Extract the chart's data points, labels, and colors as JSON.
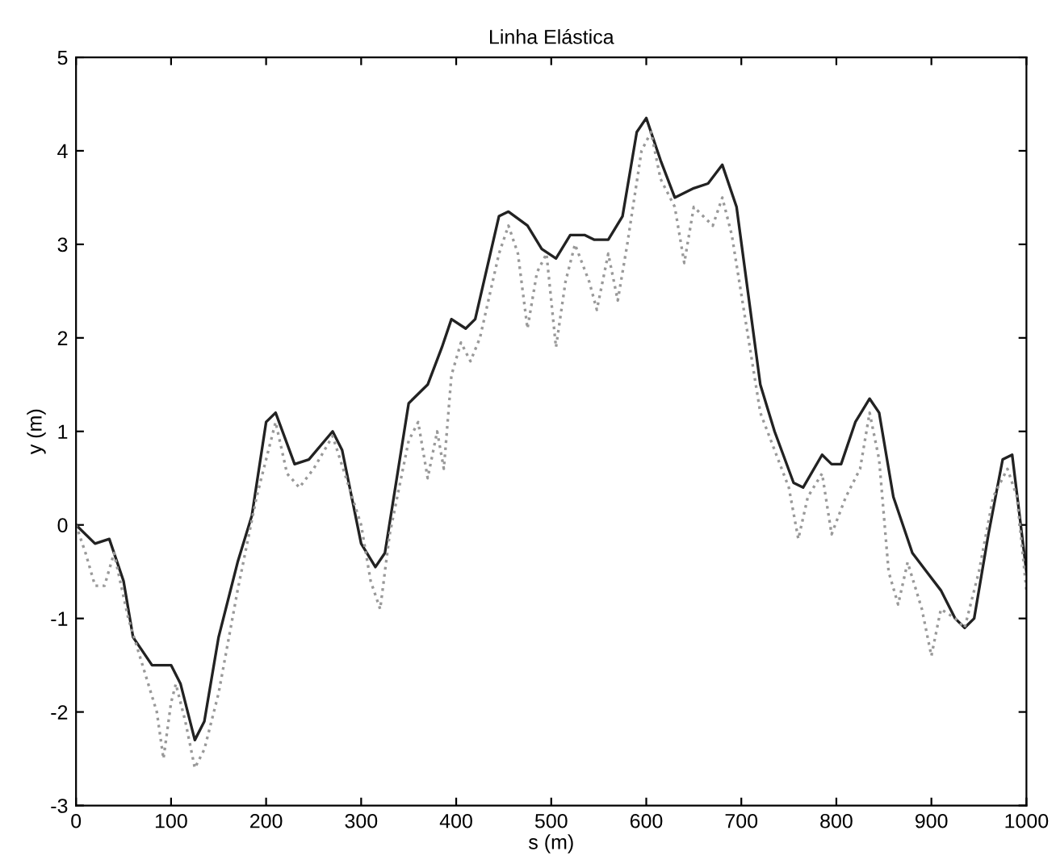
{
  "chart_data": {
    "type": "line",
    "title": "Linha Elástica",
    "xlabel": "s (m)",
    "ylabel": "y (m)",
    "xlim": [
      0,
      1000
    ],
    "ylim": [
      -3,
      5
    ],
    "xticks": [
      0,
      100,
      200,
      300,
      400,
      500,
      600,
      700,
      800,
      900,
      1000
    ],
    "yticks": [
      -3,
      -2,
      -1,
      0,
      1,
      2,
      3,
      4,
      5
    ],
    "grid": false,
    "series": [
      {
        "color": "#222222",
        "line_style": "solid",
        "x": [
          0,
          20,
          35,
          50,
          60,
          80,
          100,
          110,
          125,
          135,
          150,
          170,
          185,
          200,
          210,
          230,
          245,
          270,
          280,
          300,
          315,
          325,
          350,
          370,
          385,
          395,
          410,
          420,
          445,
          455,
          475,
          490,
          505,
          520,
          535,
          545,
          560,
          575,
          590,
          600,
          615,
          630,
          650,
          665,
          680,
          695,
          720,
          735,
          755,
          765,
          785,
          795,
          805,
          820,
          835,
          845,
          860,
          880,
          895,
          910,
          925,
          935,
          945,
          960,
          975,
          985,
          1000
        ],
        "values": [
          0,
          -0.2,
          -0.15,
          -0.6,
          -1.2,
          -1.5,
          -1.5,
          -1.7,
          -2.3,
          -2.1,
          -1.2,
          -0.4,
          0.1,
          1.1,
          1.2,
          0.65,
          0.7,
          1.0,
          0.8,
          -0.2,
          -0.45,
          -0.3,
          1.3,
          1.5,
          1.9,
          2.2,
          2.1,
          2.2,
          3.3,
          3.35,
          3.2,
          2.95,
          2.85,
          3.1,
          3.1,
          3.05,
          3.05,
          3.3,
          4.2,
          4.35,
          3.9,
          3.5,
          3.6,
          3.65,
          3.85,
          3.4,
          1.5,
          1.0,
          0.45,
          0.4,
          0.75,
          0.65,
          0.65,
          1.1,
          1.35,
          1.2,
          0.3,
          -0.3,
          -0.5,
          -0.7,
          -1.0,
          -1.1,
          -1.0,
          -0.1,
          0.7,
          0.75,
          -0.5
        ]
      },
      {
        "color": "#999999",
        "line_style": "dotted",
        "x": [
          0,
          10,
          20,
          30,
          40,
          55,
          70,
          85,
          92,
          100,
          105,
          115,
          125,
          135,
          150,
          170,
          190,
          200,
          210,
          222,
          235,
          250,
          270,
          300,
          310,
          320,
          330,
          350,
          360,
          370,
          380,
          387,
          395,
          405,
          415,
          425,
          445,
          455,
          465,
          475,
          485,
          495,
          505,
          515,
          525,
          540,
          548,
          560,
          570,
          580,
          595,
          605,
          615,
          630,
          640,
          650,
          670,
          680,
          690,
          720,
          735,
          750,
          760,
          770,
          785,
          795,
          810,
          825,
          835,
          845,
          855,
          865,
          875,
          890,
          900,
          910,
          925,
          935,
          950,
          965,
          980,
          990,
          1000
        ],
        "values": [
          0,
          -0.3,
          -0.65,
          -0.65,
          -0.3,
          -1.0,
          -1.5,
          -2.0,
          -2.5,
          -1.9,
          -1.7,
          -2.1,
          -2.6,
          -2.4,
          -1.8,
          -0.7,
          0.3,
          0.7,
          1.1,
          0.55,
          0.4,
          0.6,
          0.95,
          0.0,
          -0.6,
          -0.9,
          -0.1,
          0.9,
          1.1,
          0.5,
          1.0,
          0.6,
          1.6,
          1.95,
          1.75,
          2.0,
          2.9,
          3.2,
          2.9,
          2.1,
          2.7,
          2.9,
          1.9,
          2.6,
          3.0,
          2.6,
          2.3,
          2.9,
          2.4,
          3.0,
          4.0,
          4.2,
          3.7,
          3.4,
          2.8,
          3.4,
          3.2,
          3.5,
          3.1,
          1.2,
          0.8,
          0.4,
          -0.15,
          0.3,
          0.55,
          -0.1,
          0.3,
          0.6,
          1.2,
          0.7,
          -0.5,
          -0.85,
          -0.4,
          -0.9,
          -1.4,
          -0.9,
          -1.0,
          -1.1,
          -0.5,
          0.3,
          0.6,
          0.3,
          -0.7
        ]
      }
    ]
  }
}
